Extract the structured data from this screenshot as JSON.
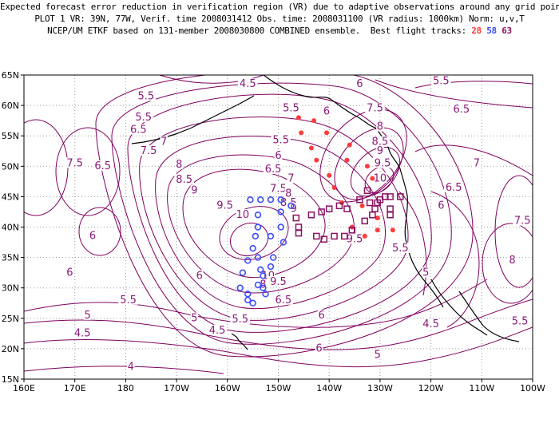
{
  "header": {
    "line1": "Expected forecast error reduction in verification region (VR) due to adaptive observations around any grid point.",
    "line2": "PLOT 1 VR: 39N, 77W, Verif. time 2008031412 Obs. time: 2008031100 (VR radius: 1000km) Norm: u,v,T",
    "line3_prefix": "NCEP/UM ETKF based on 131-member 2008030800 COMBINED ensemble.  Best flight tracks:",
    "track_1": "28",
    "track_2": "58",
    "track_3": "63"
  },
  "colors": {
    "contour": "#800060",
    "track_1": "#ff3b3b",
    "track_2": "#3b4cff",
    "track_3": "#8a1060",
    "coast": "#000000",
    "grid": "#9a9a9a"
  },
  "axes": {
    "x_ticks": [
      "160E",
      "170E",
      "180",
      "170W",
      "160W",
      "150W",
      "140W",
      "130W",
      "120W",
      "110W",
      "100W"
    ],
    "y_ticks": [
      "15N",
      "20N",
      "25N",
      "30N",
      "35N",
      "40N",
      "45N",
      "50N",
      "55N",
      "60N",
      "65N"
    ],
    "lon_range": [
      160,
      260
    ],
    "lat_range": [
      15,
      65
    ]
  },
  "contour_labels": [
    {
      "t": "4.5",
      "lon": -156.0,
      "lat": 63.0
    },
    {
      "t": "5.5",
      "lon": -176.0,
      "lat": 61.0
    },
    {
      "t": "6",
      "lon": -134.0,
      "lat": 63.0
    },
    {
      "t": "5.5",
      "lon": -118.0,
      "lat": 63.5
    },
    {
      "t": "6.5",
      "lon": -114.0,
      "lat": 58.8
    },
    {
      "t": "7.5",
      "lon": -131.0,
      "lat": 59.0
    },
    {
      "t": "5.5",
      "lon": -147.5,
      "lat": 59.0
    },
    {
      "t": "6",
      "lon": -140.5,
      "lat": 58.5
    },
    {
      "t": "5.5",
      "lon": -176.5,
      "lat": 57.5
    },
    {
      "t": "6.5",
      "lon": -177.5,
      "lat": 55.5
    },
    {
      "t": "7",
      "lon": -172.5,
      "lat": 53.5
    },
    {
      "t": "7.5",
      "lon": -175.5,
      "lat": 52.0
    },
    {
      "t": "8",
      "lon": -169.5,
      "lat": 49.8
    },
    {
      "t": "8.5",
      "lon": -168.5,
      "lat": 47.3
    },
    {
      "t": "9",
      "lon": -166.5,
      "lat": 45.5
    },
    {
      "t": "5.5",
      "lon": -149.5,
      "lat": 53.8
    },
    {
      "t": "6",
      "lon": -150.0,
      "lat": 51.2
    },
    {
      "t": "6.5",
      "lon": -151.0,
      "lat": 49.0
    },
    {
      "t": "7",
      "lon": -147.5,
      "lat": 47.5
    },
    {
      "t": "7.5",
      "lon": -150.0,
      "lat": 45.8
    },
    {
      "t": "8",
      "lon": -148.0,
      "lat": 45.0
    },
    {
      "t": "8.5",
      "lon": -148.0,
      "lat": 43.5
    },
    {
      "t": "9",
      "lon": -147.0,
      "lat": 42.5
    },
    {
      "t": "8",
      "lon": -130.0,
      "lat": 56.0
    },
    {
      "t": "8.5",
      "lon": -130.0,
      "lat": 53.5
    },
    {
      "t": "9",
      "lon": -130.0,
      "lat": 52.0
    },
    {
      "t": "9.5",
      "lon": -129.5,
      "lat": 50.0
    },
    {
      "t": "10",
      "lon": -130.0,
      "lat": 47.5
    },
    {
      "t": "7",
      "lon": -111.0,
      "lat": 50.0
    },
    {
      "t": "6.5",
      "lon": -115.5,
      "lat": 46.0
    },
    {
      "t": "6",
      "lon": -118.0,
      "lat": 43.0
    },
    {
      "t": "7.5",
      "lon": -102.0,
      "lat": 40.5
    },
    {
      "t": "7.5",
      "lon": -190.0,
      "lat": 50.0
    },
    {
      "t": "6.5",
      "lon": -184.5,
      "lat": 49.5
    },
    {
      "t": "6",
      "lon": -186.5,
      "lat": 38.0
    },
    {
      "t": "9.5",
      "lon": -160.5,
      "lat": 43.0
    },
    {
      "t": "10",
      "lon": -157.0,
      "lat": 41.5
    },
    {
      "t": "10",
      "lon": -152.0,
      "lat": 31.5
    },
    {
      "t": "9.5",
      "lon": -150.0,
      "lat": 30.5
    },
    {
      "t": "8",
      "lon": -153.0,
      "lat": 30.0
    },
    {
      "t": "9.5",
      "lon": -135.0,
      "lat": 37.5
    },
    {
      "t": "5.5",
      "lon": -126.0,
      "lat": 36.0
    },
    {
      "t": "5",
      "lon": -121.0,
      "lat": 32.0
    },
    {
      "t": "6",
      "lon": -165.5,
      "lat": 31.5
    },
    {
      "t": "5.5",
      "lon": -179.5,
      "lat": 27.5
    },
    {
      "t": "6.5",
      "lon": -149.0,
      "lat": 27.5
    },
    {
      "t": "5.5",
      "lon": -157.5,
      "lat": 24.3
    },
    {
      "t": "6",
      "lon": -141.5,
      "lat": 25.0
    },
    {
      "t": "5",
      "lon": -187.5,
      "lat": 25.0
    },
    {
      "t": "5",
      "lon": -166.5,
      "lat": 24.5
    },
    {
      "t": "4.5",
      "lon": -188.5,
      "lat": 22.0
    },
    {
      "t": "4.5",
      "lon": -162.0,
      "lat": 22.5
    },
    {
      "t": "6",
      "lon": -142.0,
      "lat": 19.5
    },
    {
      "t": "5",
      "lon": -130.5,
      "lat": 18.5
    },
    {
      "t": "4",
      "lon": -179.0,
      "lat": 16.5
    },
    {
      "t": "8",
      "lon": -104.0,
      "lat": 34.0
    },
    {
      "t": "4.5",
      "lon": -120.0,
      "lat": 23.5
    },
    {
      "t": "5.5",
      "lon": -102.5,
      "lat": 24.0
    },
    {
      "t": "6",
      "lon": -191.0,
      "lat": 32.0
    }
  ],
  "track_1_points": [
    [
      -146.0,
      58.0
    ],
    [
      -143.0,
      57.5
    ],
    [
      -140.5,
      55.5
    ],
    [
      -145.5,
      55.5
    ],
    [
      -143.5,
      53.0
    ],
    [
      -136.0,
      53.5
    ],
    [
      -142.5,
      51.0
    ],
    [
      -136.5,
      51.0
    ],
    [
      -132.5,
      50.0
    ],
    [
      -140.0,
      48.5
    ],
    [
      -131.5,
      48.0
    ],
    [
      -139.0,
      46.5
    ],
    [
      -137.5,
      44.0
    ],
    [
      -133.5,
      43.5
    ],
    [
      -130.5,
      41.5
    ],
    [
      -135.5,
      40.0
    ],
    [
      -130.5,
      39.5
    ],
    [
      -127.5,
      39.5
    ],
    [
      -133.0,
      38.5
    ]
  ],
  "track_2_points": [
    [
      -155.5,
      44.5
    ],
    [
      -153.5,
      44.5
    ],
    [
      -151.5,
      44.5
    ],
    [
      -149.5,
      44.5
    ],
    [
      -147.5,
      43.5
    ],
    [
      -154.0,
      42.0
    ],
    [
      -149.5,
      42.5
    ],
    [
      -154.0,
      40.0
    ],
    [
      -149.5,
      40.0
    ],
    [
      -151.5,
      38.5
    ],
    [
      -154.5,
      38.5
    ],
    [
      -149.0,
      37.5
    ],
    [
      -155.0,
      36.5
    ],
    [
      -151.0,
      35.0
    ],
    [
      -154.0,
      35.0
    ],
    [
      -156.0,
      34.5
    ],
    [
      -151.5,
      33.5
    ],
    [
      -153.5,
      33.0
    ],
    [
      -157.0,
      32.5
    ],
    [
      -153.0,
      32.0
    ],
    [
      -157.5,
      30.0
    ],
    [
      -154.0,
      30.5
    ],
    [
      -153.0,
      30.0
    ],
    [
      -156.0,
      29.0
    ],
    [
      -152.5,
      29.0
    ],
    [
      -156.0,
      28.0
    ],
    [
      -155.0,
      27.5
    ]
  ],
  "track_3_points": [
    [
      -134.0,
      44.5
    ],
    [
      -136.5,
      43.0
    ],
    [
      -138.0,
      43.5
    ],
    [
      -140.0,
      43.0
    ],
    [
      -141.5,
      42.5
    ],
    [
      -143.5,
      42.0
    ],
    [
      -146.5,
      41.5
    ],
    [
      -146.0,
      40.0
    ],
    [
      -146.0,
      39.0
    ],
    [
      -142.5,
      38.5
    ],
    [
      -141.0,
      38.0
    ],
    [
      -139.0,
      38.5
    ],
    [
      -137.0,
      38.5
    ],
    [
      -135.5,
      39.5
    ],
    [
      -133.0,
      41.0
    ],
    [
      -131.5,
      42.0
    ],
    [
      -131.0,
      43.0
    ],
    [
      -130.0,
      44.5
    ],
    [
      -129.0,
      45.0
    ],
    [
      -128.0,
      45.0
    ],
    [
      -126.0,
      45.0
    ],
    [
      -128.0,
      43.0
    ],
    [
      -128.0,
      42.0
    ],
    [
      -130.5,
      44.0
    ],
    [
      -132.0,
      44.0
    ],
    [
      -132.5,
      46.0
    ]
  ]
}
